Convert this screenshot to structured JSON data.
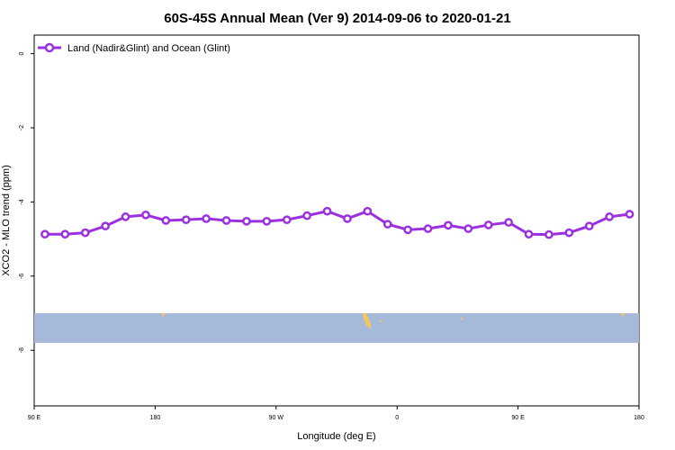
{
  "chart_data": {
    "type": "line",
    "title": "60S-45S Annual Mean (Ver 9)   2014-09-06 to 2020-01-21",
    "xlabel": "Longitude (deg E)",
    "ylabel": "XCO2 - MLO trend (ppm)",
    "xlim": [
      90,
      540
    ],
    "ylim": [
      -9.5,
      0.5
    ],
    "yticks": [
      0,
      -2,
      -4,
      -6,
      -8
    ],
    "xticks": [
      {
        "value": 90,
        "label": "90 E"
      },
      {
        "value": 180,
        "label": "180"
      },
      {
        "value": 270,
        "label": "90 W"
      },
      {
        "value": 360,
        "label": "0"
      },
      {
        "value": 450,
        "label": "90 E"
      },
      {
        "value": 540,
        "label": "180"
      }
    ],
    "grid": false,
    "legend_position": "top-left",
    "line_color": "#9b30e0",
    "ocean_color": "#a6b9d9",
    "land_color": "#f5c85a",
    "map_band_y": [
      -7.0,
      -7.8
    ],
    "series": [
      {
        "name": "Land (Nadir&Glint) and Ocean (Glint)",
        "x": [
          98,
          113,
          128,
          143,
          158,
          173,
          188,
          203,
          218,
          233,
          248,
          263,
          278,
          293,
          308,
          323,
          338,
          353,
          368,
          383,
          398,
          413,
          428,
          443,
          458,
          473,
          488,
          503,
          518,
          533
        ],
        "values": [
          -4.87,
          -4.87,
          -4.83,
          -4.65,
          -4.4,
          -4.35,
          -4.5,
          -4.48,
          -4.45,
          -4.5,
          -4.52,
          -4.52,
          -4.48,
          -4.37,
          -4.25,
          -4.45,
          -4.25,
          -4.6,
          -4.75,
          -4.72,
          -4.63,
          -4.72,
          -4.62,
          -4.55,
          -4.87,
          -4.88,
          -4.83,
          -4.65,
          -4.4,
          -4.33
        ]
      }
    ]
  }
}
